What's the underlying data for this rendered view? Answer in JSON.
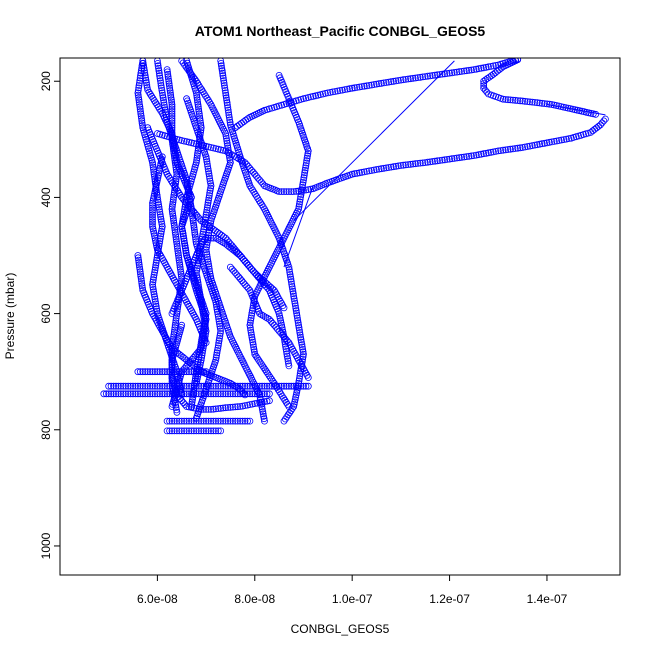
{
  "chart_data": {
    "type": "scatter",
    "title": "ATOM1 Northeast_Pacific CONBGL_GEOS5",
    "xlabel": "CONBGL_GEOS5",
    "ylabel": "Pressure (mbar)",
    "xlim": [
      4e-08,
      1.55e-07
    ],
    "ylim": [
      1050,
      160
    ],
    "y_reversed": true,
    "x_ticks": [
      6e-08,
      8e-08,
      1e-07,
      1.2e-07,
      1.4e-07
    ],
    "x_tick_labels": [
      "6.0e-08",
      "8.0e-08",
      "1.0e-07",
      "1.2e-07",
      "1.4e-07"
    ],
    "y_ticks": [
      200,
      400,
      600,
      800,
      1000
    ],
    "y_tick_labels": [
      "200",
      "400",
      "600",
      "800",
      "1000"
    ],
    "marker": "open-circle",
    "color": "#0000ff",
    "grid": false,
    "series": [
      {
        "x": [
          5.7e-08,
          5.8e-08,
          6.1e-08,
          6.3e-08,
          6.4e-08,
          6.7e-08,
          6.5e-08,
          6.6e-08,
          6.8e-08,
          7e-08,
          6.9e-08,
          6.5e-08,
          6.4e-08,
          6.3e-08
        ],
        "y": [
          165,
          215,
          255,
          290,
          340,
          400,
          450,
          500,
          560,
          610,
          660,
          700,
          730,
          760
        ]
      },
      {
        "x": [
          5.7e-08,
          5.6e-08,
          5.7e-08,
          5.9e-08,
          6e-08,
          6.1e-08,
          6e-08,
          5.9e-08,
          6e-08,
          6.2e-08,
          6.4e-08,
          6.5e-08
        ],
        "y": [
          165,
          220,
          280,
          340,
          400,
          450,
          500,
          550,
          600,
          650,
          700,
          740
        ]
      },
      {
        "x": [
          6e-08,
          6.1e-08,
          6.2e-08,
          6.4e-08,
          6.6e-08,
          6.7e-08,
          6.8e-08,
          7e-08,
          7.2e-08,
          7.3e-08,
          7.2e-08,
          7e-08,
          6.8e-08
        ],
        "y": [
          165,
          220,
          270,
          320,
          370,
          420,
          480,
          530,
          580,
          630,
          680,
          730,
          780
        ]
      },
      {
        "x": [
          6.5e-08,
          6.8e-08,
          7.1e-08,
          7.4e-08,
          7.5e-08,
          7.3e-08,
          7.1e-08,
          7e-08,
          7.1e-08,
          7.3e-08,
          7.5e-08,
          7.8e-08,
          8.1e-08,
          8.2e-08
        ],
        "y": [
          165,
          200,
          240,
          290,
          340,
          390,
          440,
          490,
          540,
          590,
          640,
          690,
          740,
          785
        ]
      },
      {
        "x": [
          7.3e-08,
          7.4e-08,
          7.5e-08,
          7.7e-08,
          7.9e-08,
          8.2e-08,
          8.5e-08,
          8.7e-08,
          8.8e-08,
          8.9e-08,
          9e-08,
          8.9e-08,
          8.8e-08,
          8.6e-08
        ],
        "y": [
          165,
          220,
          275,
          330,
          380,
          420,
          470,
          520,
          570,
          620,
          670,
          720,
          760,
          785
        ]
      },
      {
        "x": [
          8.5e-08,
          8.7e-08,
          8.9e-08,
          9.1e-08,
          9e-08,
          8.9e-08,
          8.6e-08,
          8.3e-08,
          8e-08,
          7.9e-08,
          8e-08,
          8.4e-08,
          8.7e-08
        ],
        "y": [
          190,
          230,
          270,
          320,
          370,
          420,
          470,
          520,
          570,
          620,
          670,
          720,
          760
        ]
      },
      {
        "x": [
          6.2e-08,
          6.3e-08,
          6.3e-08,
          6.4e-08,
          6.3e-08,
          6.4e-08,
          6.5e-08,
          6.4e-08,
          6.3e-08,
          6.3e-08,
          6.4e-08
        ],
        "y": [
          180,
          240,
          300,
          360,
          420,
          480,
          540,
          600,
          660,
          720,
          770
        ]
      },
      {
        "x": [
          5.8e-08,
          5.9e-08,
          6e-08,
          6.2e-08,
          6.5e-08,
          6.9e-08,
          7.4e-08,
          7.7e-08,
          8e-08,
          8.3e-08,
          8.5e-08,
          8.6e-08,
          8.7e-08
        ],
        "y": [
          280,
          300,
          320,
          360,
          400,
          440,
          470,
          500,
          530,
          560,
          600,
          640,
          690
        ]
      },
      {
        "x": [
          6.6e-08,
          6.8e-08,
          6.9e-08,
          6.8e-08,
          6.6e-08,
          6.5e-08,
          6.6e-08,
          6.8e-08,
          7e-08,
          6.9e-08,
          6.8e-08,
          6.7e-08
        ],
        "y": [
          165,
          220,
          280,
          340,
          400,
          450,
          500,
          550,
          600,
          650,
          700,
          760
        ]
      },
      {
        "x": [
          6e-08,
          6.4e-08,
          6.9e-08,
          7.4e-08,
          7.8e-08,
          8e-08,
          8.2e-08,
          8.5e-08,
          8.7e-08,
          8.8e-08,
          9e-08,
          9.2e-08,
          9.5e-08,
          1e-07,
          1.05e-07,
          1.1e-07,
          1.15e-07,
          1.2e-07,
          1.25e-07,
          1.3e-07,
          1.35e-07,
          1.4e-07,
          1.45e-07,
          1.49e-07,
          1.51e-07,
          1.52e-07
        ],
        "y": [
          290,
          300,
          310,
          320,
          340,
          360,
          380,
          390,
          390,
          390,
          388,
          385,
          375,
          360,
          352,
          345,
          340,
          334,
          328,
          320,
          314,
          306,
          298,
          288,
          275,
          265
        ]
      },
      {
        "x": [
          7.6e-08,
          7.9e-08,
          8.2e-08,
          8.6e-08,
          9e-08,
          9.5e-08,
          1e-07,
          1.05e-07,
          1.1e-07,
          1.15e-07,
          1.2e-07,
          1.25e-07,
          1.3e-07,
          1.34e-07
        ],
        "y": [
          280,
          262,
          250,
          240,
          230,
          220,
          212,
          205,
          198,
          192,
          186,
          180,
          172,
          162
        ]
      },
      {
        "x": [
          1.34e-07,
          1.31e-07,
          1.29e-07,
          1.27e-07,
          1.27e-07,
          1.28e-07,
          1.31e-07,
          1.35e-07,
          1.41e-07,
          1.5e-07
        ],
        "y": [
          163,
          175,
          188,
          200,
          212,
          222,
          231,
          234,
          240,
          257
        ]
      },
      {
        "x": [
          6.6e-08,
          6.8e-08,
          7e-08,
          7.1e-08,
          7e-08,
          6.9e-08,
          6.8e-08,
          6.9e-08,
          7e-08,
          6.9e-08,
          6.8e-08
        ],
        "y": [
          230,
          280,
          330,
          380,
          430,
          480,
          530,
          580,
          630,
          680,
          720
        ]
      },
      {
        "x": [
          5.6e-08,
          5.7e-08,
          5.9e-08,
          6.1e-08,
          6.3e-08,
          6.6e-08,
          6.9e-08,
          7.2e-08,
          7.5e-08,
          7.7e-08,
          7.8e-08
        ],
        "y": [
          500,
          560,
          600,
          630,
          660,
          680,
          700,
          710,
          720,
          730,
          740
        ]
      },
      {
        "x": [
          5e-08,
          5.2e-08,
          5.4e-08,
          5.6e-08,
          5.8e-08,
          6e-08,
          6.2e-08,
          6.5e-08,
          7e-08,
          7.5e-08,
          8e-08,
          8.5e-08,
          9.1e-08
        ],
        "y": [
          725,
          725,
          725,
          725,
          725,
          725,
          725,
          725,
          725,
          725,
          725,
          725,
          725
        ]
      },
      {
        "x": [
          4.9e-08,
          5.2e-08,
          5.6e-08,
          6e-08,
          6.4e-08,
          6.8e-08,
          7.2e-08,
          7.6e-08,
          8e-08,
          8.3e-08
        ],
        "y": [
          738,
          738,
          738,
          738,
          738,
          738,
          738,
          738,
          738,
          738
        ]
      },
      {
        "x": [
          5.6e-08,
          5.8e-08,
          6e-08,
          6.2e-08,
          6.4e-08,
          6.6e-08,
          6.8e-08,
          7e-08
        ],
        "y": [
          700,
          700,
          700,
          700,
          700,
          700,
          700,
          700
        ]
      },
      {
        "x": [
          6.2e-08,
          6.4e-08,
          6.6e-08,
          6.8e-08,
          7e-08,
          7.2e-08,
          7.3e-08
        ],
        "y": [
          802,
          802,
          802,
          802,
          802,
          802,
          802
        ]
      },
      {
        "x": [
          6.2e-08,
          6.5e-08,
          6.8e-08,
          7.1e-08,
          7.4e-08,
          7.7e-08,
          7.9e-08
        ],
        "y": [
          785,
          785,
          785,
          785,
          785,
          785,
          785
        ]
      },
      {
        "x": [
          6.5e-08,
          6.4e-08,
          6.3e-08,
          6.3e-08,
          6.4e-08,
          6.6e-08,
          6.9e-08,
          7.1e-08,
          7.4e-08,
          7.7e-08,
          8e-08,
          8.3e-08
        ],
        "y": [
          620,
          650,
          680,
          710,
          740,
          760,
          765,
          765,
          762,
          760,
          755,
          750
        ]
      },
      {
        "x": [
          6.3e-08,
          6.4e-08,
          6.5e-08,
          6.6e-08,
          6.7e-08,
          6.8e-08,
          6.9e-08,
          7e-08,
          7.2e-08,
          7.4e-08,
          7.7e-08,
          8e-08,
          8.4e-08,
          8.6e-08
        ],
        "y": [
          600,
          580,
          560,
          540,
          520,
          500,
          480,
          470,
          470,
          480,
          500,
          530,
          560,
          590
        ]
      },
      {
        "x": [
          7.5e-08,
          7.7e-08,
          7.9e-08,
          8e-08,
          8.1e-08,
          8.3e-08,
          8.4e-08,
          8.5e-08,
          8.7e-08,
          8.9e-08,
          9.1e-08
        ],
        "y": [
          520,
          540,
          560,
          580,
          600,
          610,
          620,
          630,
          650,
          680,
          710
        ]
      },
      {
        "x": [
          6.1e-08,
          6e-08,
          5.9e-08,
          5.9e-08,
          6e-08,
          6.2e-08,
          6.4e-08,
          6.6e-08,
          6.8e-08,
          7e-08
        ],
        "y": [
          330,
          370,
          410,
          450,
          490,
          520,
          550,
          580,
          610,
          650
        ]
      }
    ],
    "lines": [
      {
        "x": [
          8.8e-08,
          1.21e-07
        ],
        "y": [
          440,
          165
        ]
      },
      {
        "x": [
          8.6e-08,
          9.2e-08
        ],
        "y": [
          520,
          380
        ]
      },
      {
        "x": [
          1.4e-07,
          1.52e-07
        ],
        "y": [
          240,
          258
        ]
      }
    ]
  }
}
